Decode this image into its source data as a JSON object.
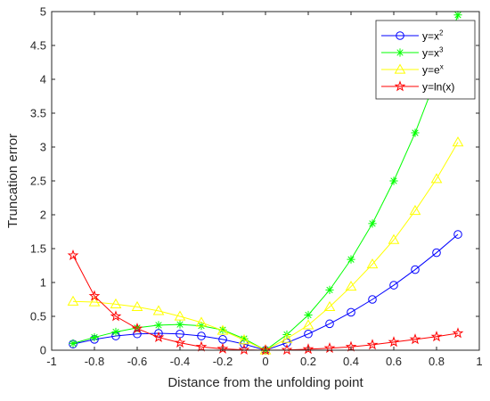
{
  "chart_data": {
    "type": "line",
    "xlabel": "Distance from the unfolding point",
    "ylabel": "Truncation error",
    "xlim": [
      -1,
      1
    ],
    "ylim": [
      0,
      5
    ],
    "x_ticks": [
      "-1",
      "-0.8",
      "-0.6",
      "-0.4",
      "-0.2",
      "0",
      "0.2",
      "0.4",
      "0.6",
      "0.8",
      "1"
    ],
    "x_tick_values": [
      -1,
      -0.8,
      -0.6,
      -0.4,
      -0.2,
      0,
      0.2,
      0.4,
      0.6,
      0.8,
      1
    ],
    "y_ticks": [
      "0",
      "0.5",
      "1",
      "1.5",
      "2",
      "2.5",
      "3",
      "3.5",
      "4",
      "4.5",
      "5"
    ],
    "y_tick_values": [
      0,
      0.5,
      1,
      1.5,
      2,
      2.5,
      3,
      3.5,
      4,
      4.5,
      5
    ],
    "grid": false,
    "legend_position": "top-right",
    "x": [
      -0.9,
      -0.8,
      -0.7,
      -0.6,
      -0.5,
      -0.4,
      -0.3,
      -0.2,
      -0.1,
      0,
      0.1,
      0.2,
      0.3,
      0.4,
      0.5,
      0.6,
      0.7,
      0.8,
      0.9
    ],
    "series": [
      {
        "name": "y=x2",
        "legend_base": "y=x",
        "legend_sup": "2",
        "color": "#0000ff",
        "marker": "circle",
        "values": [
          0.09,
          0.16,
          0.21,
          0.24,
          0.25,
          0.24,
          0.21,
          0.16,
          0.09,
          0.0,
          0.11,
          0.24,
          0.39,
          0.56,
          0.75,
          0.96,
          1.19,
          1.44,
          1.71
        ]
      },
      {
        "name": "y=x3",
        "legend_base": "y=x",
        "legend_sup": "3",
        "color": "#00ff00",
        "marker": "asterisk",
        "values": [
          0.1,
          0.19,
          0.27,
          0.33,
          0.37,
          0.38,
          0.36,
          0.3,
          0.17,
          0.0,
          0.23,
          0.52,
          0.89,
          1.34,
          1.87,
          2.5,
          3.21,
          4.03,
          4.95
        ]
      },
      {
        "name": "y=ex",
        "legend_base": "y=e",
        "legend_sup": "x",
        "color": "#ffff00",
        "marker": "triangle",
        "values": [
          0.72,
          0.71,
          0.68,
          0.64,
          0.58,
          0.5,
          0.41,
          0.29,
          0.15,
          0.0,
          0.17,
          0.37,
          0.64,
          0.94,
          1.27,
          1.63,
          2.06,
          2.53,
          3.07
        ]
      },
      {
        "name": "y=ln(x)",
        "legend_base": "y=ln(x)",
        "legend_sup": "",
        "color": "#ff0000",
        "marker": "pentagram",
        "values": [
          1.4,
          0.8,
          0.5,
          0.32,
          0.19,
          0.11,
          0.05,
          0.02,
          0.005,
          0.0,
          0.004,
          0.015,
          0.03,
          0.05,
          0.08,
          0.12,
          0.16,
          0.2,
          0.25
        ]
      }
    ]
  }
}
